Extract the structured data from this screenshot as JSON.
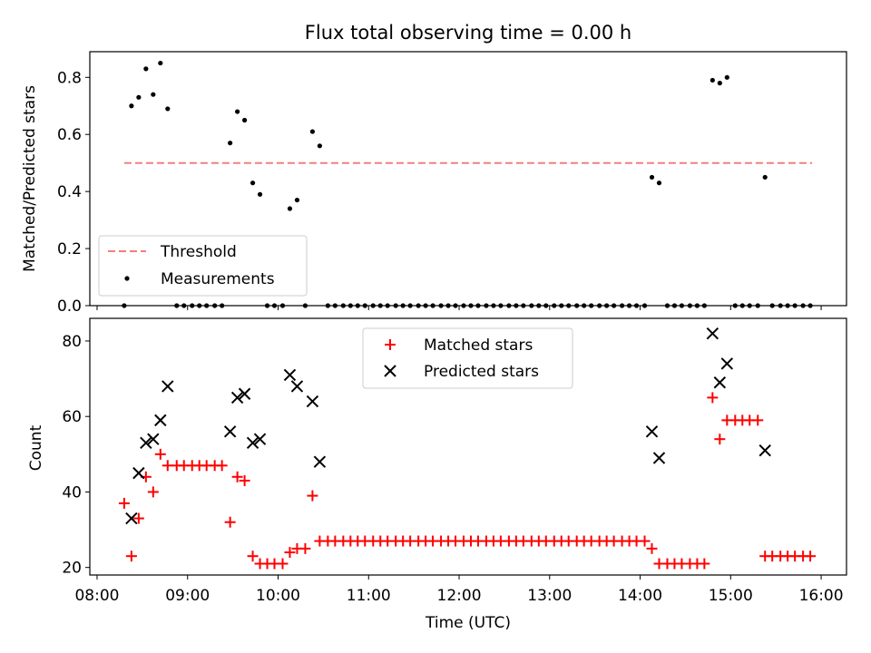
{
  "chart_data": [
    {
      "type": "scatter",
      "title": "Flux total observing time = 0.00 h",
      "xlabel": "",
      "ylabel": "Matched/Predicted stars",
      "ylim": [
        0,
        0.89
      ],
      "yticks": [
        "0.0",
        "0.2",
        "0.4",
        "0.6",
        "0.8"
      ],
      "ytick_values": [
        0,
        0.2,
        0.4,
        0.6,
        0.8
      ],
      "threshold": {
        "name": "Threshold",
        "value": 0.5,
        "x_range": [
          8.3,
          15.9
        ],
        "color": "#f08080"
      },
      "legend": {
        "position": "lower-left",
        "entries": [
          "Threshold",
          "Measurements"
        ]
      },
      "series": [
        {
          "name": "Measurements",
          "color": "#000000",
          "x": [
            8.3,
            8.38,
            8.46,
            8.54,
            8.62,
            8.7,
            8.78,
            9.47,
            9.55,
            9.63,
            9.72,
            9.8,
            10.13,
            10.21,
            10.38,
            10.46,
            14.13,
            14.21,
            14.8,
            14.88,
            14.96,
            15.38
          ],
          "y": [
            0.0,
            0.7,
            0.73,
            0.83,
            0.74,
            0.85,
            0.69,
            0.57,
            0.68,
            0.65,
            0.43,
            0.39,
            0.34,
            0.37,
            0.61,
            0.56,
            0.45,
            0.43,
            0.79,
            0.78,
            0.8,
            0.45
          ]
        }
      ],
      "zero_series_x": [
        8.88,
        8.96,
        9.05,
        9.13,
        9.21,
        9.3,
        9.38,
        9.88,
        9.96,
        10.05,
        10.3,
        10.55,
        10.63,
        10.72,
        10.8,
        10.88,
        10.96,
        11.05,
        11.13,
        11.21,
        11.3,
        11.38,
        11.46,
        11.55,
        11.63,
        11.71,
        11.8,
        11.88,
        11.96,
        12.05,
        12.13,
        12.21,
        12.3,
        12.38,
        12.46,
        12.55,
        12.63,
        12.71,
        12.8,
        12.88,
        12.96,
        13.05,
        13.13,
        13.21,
        13.3,
        13.38,
        13.46,
        13.55,
        13.63,
        13.71,
        13.8,
        13.88,
        13.96,
        14.05,
        14.3,
        14.38,
        14.46,
        14.55,
        14.63,
        14.71,
        15.05,
        15.13,
        15.21,
        15.3,
        15.46,
        15.55,
        15.63,
        15.71,
        15.8,
        15.88
      ]
    },
    {
      "type": "scatter",
      "title": "",
      "xlabel": "Time (UTC)",
      "ylabel": "Count",
      "ylim": [
        18,
        86
      ],
      "xlim": [
        7.92,
        16.28
      ],
      "yticks": [
        "20",
        "40",
        "60",
        "80"
      ],
      "ytick_values": [
        20,
        40,
        60,
        80
      ],
      "xticks": [
        "08:00",
        "09:00",
        "10:00",
        "11:00",
        "12:00",
        "13:00",
        "14:00",
        "15:00",
        "16:00"
      ],
      "xtick_values": [
        8,
        9,
        10,
        11,
        12,
        13,
        14,
        15,
        16
      ],
      "legend": {
        "position": "upper-center",
        "entries": [
          "Matched stars",
          "Predicted stars"
        ]
      },
      "series": [
        {
          "name": "Matched stars",
          "marker": "+",
          "color": "#ff0000",
          "x": [
            8.3,
            8.38,
            8.46,
            8.54,
            8.62,
            8.7,
            8.78,
            8.88,
            8.96,
            9.05,
            9.13,
            9.21,
            9.3,
            9.38,
            9.47,
            9.55,
            9.63,
            9.72,
            9.8,
            9.88,
            9.96,
            10.05,
            10.13,
            10.21,
            10.3,
            10.38,
            10.46,
            10.55,
            10.63,
            10.72,
            10.8,
            10.88,
            10.96,
            11.05,
            11.13,
            11.21,
            11.3,
            11.38,
            11.46,
            11.55,
            11.63,
            11.71,
            11.8,
            11.88,
            11.96,
            12.05,
            12.13,
            12.21,
            12.3,
            12.38,
            12.46,
            12.55,
            12.63,
            12.71,
            12.8,
            12.88,
            12.96,
            13.05,
            13.13,
            13.21,
            13.3,
            13.38,
            13.46,
            13.55,
            13.63,
            13.71,
            13.8,
            13.88,
            13.96,
            14.05,
            14.13,
            14.21,
            14.3,
            14.38,
            14.46,
            14.55,
            14.63,
            14.71,
            14.8,
            14.88,
            14.96,
            15.05,
            15.13,
            15.21,
            15.3,
            15.38,
            15.46,
            15.55,
            15.63,
            15.71,
            15.8,
            15.88
          ],
          "y": [
            37,
            23,
            33,
            44,
            40,
            50,
            47,
            47,
            47,
            47,
            47,
            47,
            47,
            47,
            32,
            44,
            43,
            23,
            21,
            21,
            21,
            21,
            24,
            25,
            25,
            39,
            27,
            27,
            27,
            27,
            27,
            27,
            27,
            27,
            27,
            27,
            27,
            27,
            27,
            27,
            27,
            27,
            27,
            27,
            27,
            27,
            27,
            27,
            27,
            27,
            27,
            27,
            27,
            27,
            27,
            27,
            27,
            27,
            27,
            27,
            27,
            27,
            27,
            27,
            27,
            27,
            27,
            27,
            27,
            27,
            25,
            21,
            21,
            21,
            21,
            21,
            21,
            21,
            65,
            54,
            59,
            59,
            59,
            59,
            59,
            23,
            23,
            23,
            23,
            23,
            23,
            23
          ]
        },
        {
          "name": "Predicted stars",
          "marker": "x",
          "color": "#000000",
          "x": [
            8.38,
            8.46,
            8.54,
            8.62,
            8.7,
            8.78,
            9.47,
            9.55,
            9.63,
            9.72,
            9.8,
            10.13,
            10.21,
            10.38,
            10.46,
            14.13,
            14.21,
            14.8,
            14.88,
            14.96,
            15.38
          ],
          "y": [
            33,
            45,
            53,
            54,
            59,
            68,
            56,
            65,
            66,
            53,
            54,
            71,
            68,
            64,
            48,
            56,
            49,
            82,
            69,
            74,
            51
          ]
        }
      ]
    }
  ]
}
